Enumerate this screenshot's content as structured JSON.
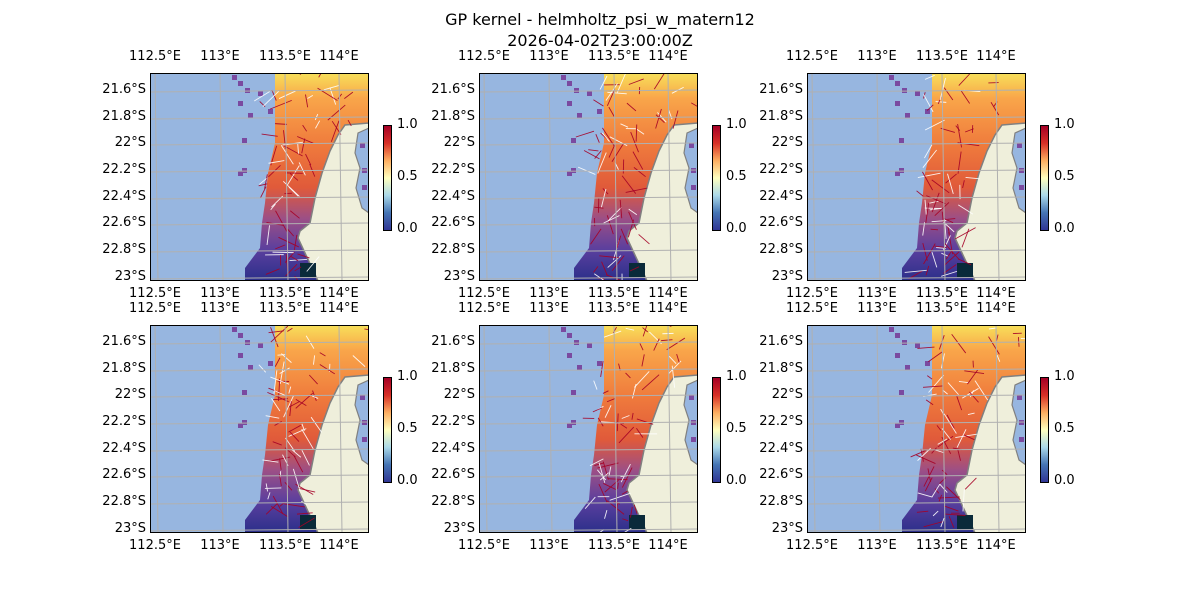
{
  "figure": {
    "title": "GP kernel - helmholtz_psi_w_matern12",
    "subtitle": "2026-04-02T23:00:00Z",
    "panel_count": 6
  },
  "axes": {
    "lon_ticks": [
      "112.5°E",
      "113°E",
      "113.5°E",
      "114°E"
    ],
    "lat_ticks": [
      "21.6°S",
      "21.8°S",
      "22°S",
      "22.2°S",
      "22.4°S",
      "22.6°S",
      "22.8°S",
      "23°S"
    ]
  },
  "colorbar": {
    "ticks": [
      "0.0",
      "0.5",
      "1.0"
    ],
    "range": [
      0.0,
      1.0
    ],
    "colormap": "RdYlBu_r"
  },
  "colors": {
    "ocean": "#97b6e0",
    "land": "#efefdb",
    "coastline": "#808080",
    "grid": "#b0b0b0",
    "vector_high": "#a50026",
    "vector_low": "#ffffff"
  }
}
